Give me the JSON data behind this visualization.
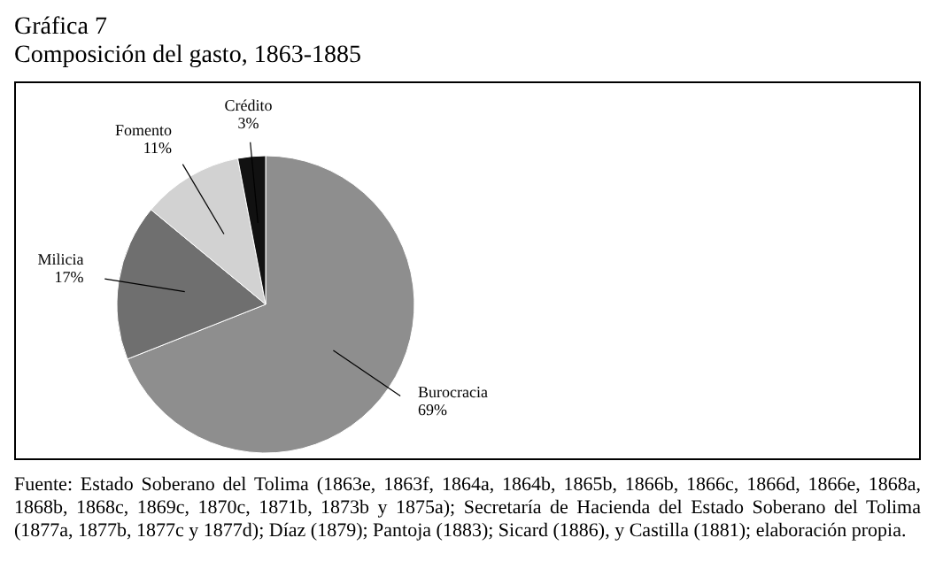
{
  "chart_data": {
    "type": "pie",
    "title": "Gráfica 7",
    "subtitle": "Composición del gasto, 1863-1885",
    "categories": [
      "Burocracia",
      "Milicia",
      "Fomento",
      "Crédito"
    ],
    "values": [
      69,
      17,
      11,
      3
    ],
    "value_labels": [
      "69%",
      "17%",
      "11%",
      "3%"
    ],
    "colors": [
      "#8e8e8e",
      "#6f6f6f",
      "#d2d2d2",
      "#111111"
    ],
    "legend": false,
    "annotations": [
      "Fuente: Estado Soberano del Tolima (1863e, 1863f, 1864a, 1864b, 1865b, 1866b, 1866c, 1866d, 1866e, 1868a, 1868b, 1868c, 1869c, 1870c, 1871b, 1873b y 1875a); Secretaría de Hacienda del Estado Soberano del Tolima (1877a, 1877b, 1877c y 1877d); Díaz (1879); Pantoja (1883); Sicard (1886), y Castilla (1881); elaboración propia."
    ]
  }
}
